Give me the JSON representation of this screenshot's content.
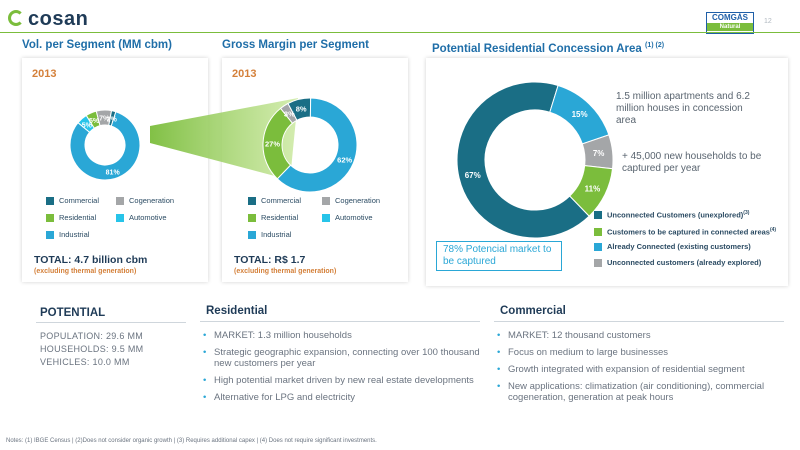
{
  "header": {
    "logo_text": "cosan",
    "logo2_top": "COMGÁS",
    "logo2_bottom": "Natural",
    "page_no": "12"
  },
  "titles": {
    "vol": "Vol. per Segment (MM cbm)",
    "gross": "Gross Margin per Segment",
    "potential_area": "Potential Residential Concession Area",
    "potential_area_sup": "(1) (2)"
  },
  "colors": {
    "commercial": "#1a6e85",
    "cogeneration": "#a4a6a8",
    "residential": "#7bbd3c",
    "automotive": "#27c4e9",
    "industrial": "#2aa7d6",
    "unexplored": "#1a6e85",
    "to_capture": "#7bbd3c",
    "connected": "#2aa7d6",
    "already_explored": "#a4a6a8",
    "highlight": "#d4803a"
  },
  "chart_data": [
    {
      "type": "pie",
      "id": "vol",
      "year": "2013",
      "slices": [
        {
          "name": "Industrial",
          "value": 81,
          "label": "81%"
        },
        {
          "name": "Automotive",
          "value": 5,
          "label": "5%"
        },
        {
          "name": "Residential",
          "value": 5,
          "label": "5%"
        },
        {
          "name": "Cogeneration",
          "value": 7,
          "label": "7%"
        },
        {
          "name": "Commercial",
          "value": 2,
          "label": "2%"
        }
      ],
      "legend": [
        "Commercial",
        "Cogeneration",
        "Residential",
        "Automotive",
        "Industrial"
      ],
      "total": "TOTAL: 4.7 billion cbm",
      "total_sub": "(excluding thermal generation)"
    },
    {
      "type": "pie",
      "id": "gross",
      "year": "2013",
      "slices": [
        {
          "name": "Commercial",
          "value": 8,
          "label": "8%"
        },
        {
          "name": "Industrial",
          "value": 62,
          "label": "62%"
        },
        {
          "name": "Residential",
          "value": 27,
          "label": "27%"
        },
        {
          "name": "Cogeneration",
          "value": 3,
          "label": "3%"
        }
      ],
      "legend": [
        "Commercial",
        "Cogeneration",
        "Residential",
        "Automotive",
        "Industrial"
      ],
      "total": "TOTAL: R$ 1.7",
      "total_sub": "(excluding thermal generation)"
    },
    {
      "type": "pie",
      "id": "area",
      "slices": [
        {
          "name": "Unconnected Customers (unexplored)",
          "value": 67,
          "label": "67%"
        },
        {
          "name": "Already Connected (existing customers)",
          "value": 15,
          "label": "15%"
        },
        {
          "name": "Unconnected customers (already explored)",
          "value": 7,
          "label": "7%"
        },
        {
          "name": "Customers to be captured in connected areas",
          "value": 11,
          "label": "11%"
        }
      ],
      "legend": [
        {
          "text": "Unconnected Customers (unexplored)",
          "sup": "(3)"
        },
        {
          "text": "Customers to be captured in connected areas",
          "sup": "(4)"
        },
        {
          "text": "Already Connected (existing customers)",
          "sup": ""
        },
        {
          "text": "Unconnected customers (already explored)",
          "sup": ""
        }
      ]
    }
  ],
  "area": {
    "callout1": "1.5 million apartments and 6.2 million houses in concession area",
    "callout2": "+ 45,000 new households to be captured per year",
    "market_box": "78% Potencial market to be captured"
  },
  "potential": {
    "title": "POTENTIAL",
    "stats": [
      "POPULATION: 29.6 MM",
      "HOUSEHOLDS: 9.5 MM",
      "VEHICLES: 10.0 MM"
    ]
  },
  "residential": {
    "title": "Residential",
    "bullets": [
      "MARKET: 1.3 million households",
      "Strategic geographic expansion, connecting over 100 thousand new customers per year",
      "High potential market driven by new real estate developments",
      "Alternative for LPG and electricity"
    ]
  },
  "commercial": {
    "title": "Commercial",
    "bullets": [
      "MARKET: 12 thousand customers",
      "Focus on medium to large businesses",
      "Growth integrated with expansion of residential segment",
      "New applications: climatization (air conditioning), commercial cogeneration, generation at peak hours"
    ]
  },
  "notes": "Notes: (1) IBGE Census | (2)Does not consider organic growth | (3) Requires additional capex | (4) Does not require significant investments."
}
